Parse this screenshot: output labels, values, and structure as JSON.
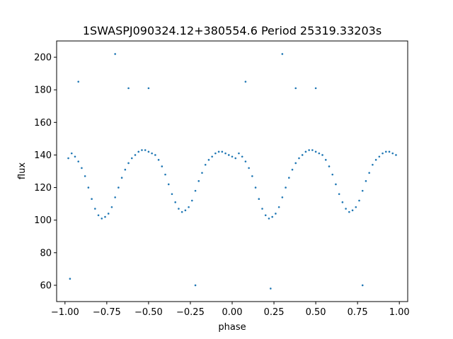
{
  "chart_data": {
    "type": "scatter",
    "title": "1SWASPJ090324.12+380554.6 Period 25319.33203s",
    "xlabel": "phase",
    "ylabel": "flux",
    "xlim": [
      -1.05,
      1.05
    ],
    "ylim": [
      50,
      210
    ],
    "xticks": [
      -1.0,
      -0.75,
      -0.5,
      -0.25,
      0.0,
      0.25,
      0.5,
      0.75,
      1.0
    ],
    "xtick_labels": [
      "−1.00",
      "−0.75",
      "−0.50",
      "−0.25",
      "0.00",
      "0.25",
      "0.50",
      "0.75",
      "1.00"
    ],
    "yticks": [
      60,
      80,
      100,
      120,
      140,
      160,
      180,
      200
    ],
    "ytick_labels": [
      "60",
      "80",
      "100",
      "120",
      "140",
      "160",
      "180",
      "200"
    ],
    "grid": false,
    "marker_color": "#1f77b4",
    "series": [
      {
        "description_free": true,
        "points": [
          [
            -0.98,
            138
          ],
          [
            -0.96,
            141
          ],
          [
            -0.94,
            139
          ],
          [
            -0.92,
            136
          ],
          [
            -0.9,
            132
          ],
          [
            -0.88,
            127
          ],
          [
            -0.86,
            120
          ],
          [
            -0.84,
            113
          ],
          [
            -0.82,
            107
          ],
          [
            -0.8,
            103
          ],
          [
            -0.78,
            101
          ],
          [
            -0.76,
            102
          ],
          [
            -0.74,
            104
          ],
          [
            -0.72,
            108
          ],
          [
            -0.7,
            114
          ],
          [
            -0.68,
            120
          ],
          [
            -0.66,
            126
          ],
          [
            -0.64,
            131
          ],
          [
            -0.62,
            135
          ],
          [
            -0.6,
            138
          ],
          [
            -0.58,
            140
          ],
          [
            -0.56,
            142
          ],
          [
            -0.54,
            143
          ],
          [
            -0.52,
            143
          ],
          [
            -0.5,
            142
          ],
          [
            -0.48,
            141
          ],
          [
            -0.46,
            140
          ],
          [
            -0.44,
            137
          ],
          [
            -0.42,
            133
          ],
          [
            -0.4,
            128
          ],
          [
            -0.38,
            122
          ],
          [
            -0.36,
            116
          ],
          [
            -0.34,
            111
          ],
          [
            -0.32,
            107
          ],
          [
            -0.3,
            105
          ],
          [
            -0.28,
            106
          ],
          [
            -0.26,
            108
          ],
          [
            -0.24,
            112
          ],
          [
            -0.22,
            118
          ],
          [
            -0.2,
            124
          ],
          [
            -0.18,
            129
          ],
          [
            -0.16,
            134
          ],
          [
            -0.14,
            137
          ],
          [
            -0.12,
            139
          ],
          [
            -0.1,
            141
          ],
          [
            -0.08,
            142
          ],
          [
            -0.06,
            142
          ],
          [
            -0.04,
            141
          ],
          [
            -0.02,
            140
          ],
          [
            0.0,
            139
          ],
          [
            0.02,
            138
          ],
          [
            0.04,
            141
          ],
          [
            0.06,
            139
          ],
          [
            0.08,
            136
          ],
          [
            0.1,
            132
          ],
          [
            0.12,
            127
          ],
          [
            0.14,
            120
          ],
          [
            0.16,
            113
          ],
          [
            0.18,
            107
          ],
          [
            0.2,
            103
          ],
          [
            0.22,
            101
          ],
          [
            0.24,
            102
          ],
          [
            0.26,
            104
          ],
          [
            0.28,
            108
          ],
          [
            0.3,
            114
          ],
          [
            0.32,
            120
          ],
          [
            0.34,
            126
          ],
          [
            0.36,
            131
          ],
          [
            0.38,
            135
          ],
          [
            0.4,
            138
          ],
          [
            0.42,
            140
          ],
          [
            0.44,
            142
          ],
          [
            0.46,
            143
          ],
          [
            0.48,
            143
          ],
          [
            0.5,
            142
          ],
          [
            0.52,
            141
          ],
          [
            0.54,
            140
          ],
          [
            0.56,
            137
          ],
          [
            0.58,
            133
          ],
          [
            0.6,
            128
          ],
          [
            0.62,
            122
          ],
          [
            0.64,
            116
          ],
          [
            0.66,
            111
          ],
          [
            0.68,
            107
          ],
          [
            0.7,
            105
          ],
          [
            0.72,
            106
          ],
          [
            0.74,
            108
          ],
          [
            0.76,
            112
          ],
          [
            0.78,
            118
          ],
          [
            0.8,
            124
          ],
          [
            0.82,
            129
          ],
          [
            0.84,
            134
          ],
          [
            0.86,
            137
          ],
          [
            0.88,
            139
          ],
          [
            0.9,
            141
          ],
          [
            0.92,
            142
          ],
          [
            0.94,
            142
          ],
          [
            0.96,
            141
          ],
          [
            0.98,
            140
          ],
          [
            -0.92,
            185
          ],
          [
            -0.62,
            181
          ],
          [
            -0.5,
            181
          ],
          [
            0.08,
            185
          ],
          [
            0.38,
            181
          ],
          [
            0.5,
            181
          ],
          [
            -0.7,
            202
          ],
          [
            0.3,
            202
          ],
          [
            -0.22,
            60
          ],
          [
            0.78,
            60
          ],
          [
            -0.97,
            64
          ],
          [
            0.23,
            58
          ]
        ]
      }
    ]
  }
}
